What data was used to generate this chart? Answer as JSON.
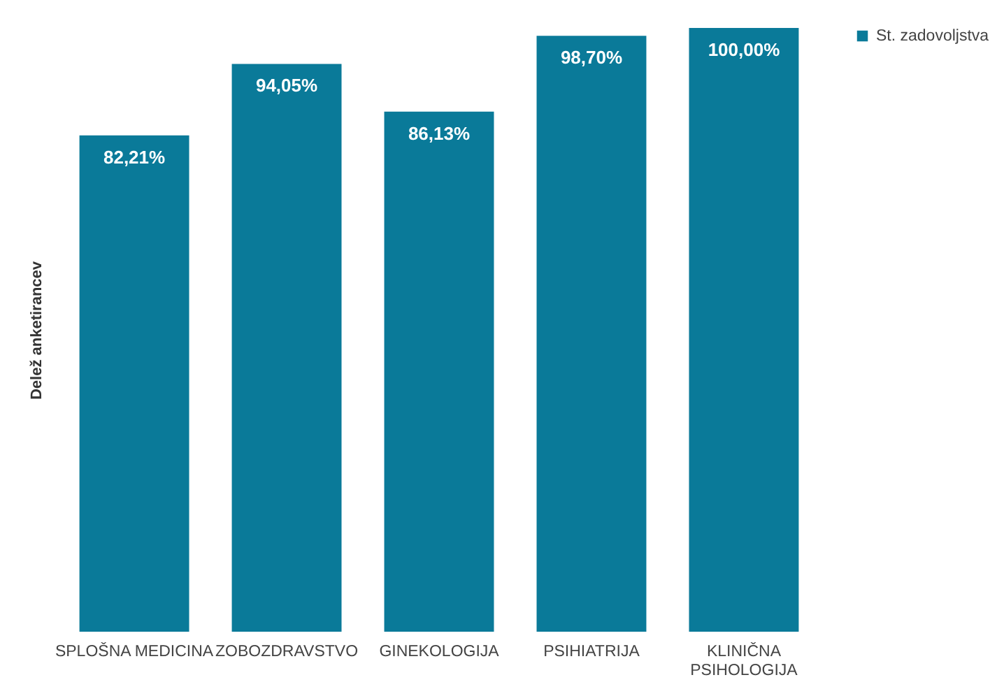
{
  "chart_data": {
    "type": "bar",
    "ylabel": "Delež anketirancev",
    "legend": "right",
    "categories": [
      "SPLOŠNA MEDICINA",
      "ZOBOZDRAVSTVO",
      "GINEKOLOGIJA",
      "PSIHIATRIJA",
      "KLINIČNA PSIHOLOGIJA"
    ],
    "series": [
      {
        "name": "St. zadovoljstva",
        "color": "#0a7a99",
        "values": [
          82.21,
          94.05,
          86.13,
          98.7,
          100
        ],
        "value_labels": [
          "82,21%",
          "94,05%",
          "86,13%",
          "98,70%",
          "100,00%"
        ]
      }
    ]
  }
}
